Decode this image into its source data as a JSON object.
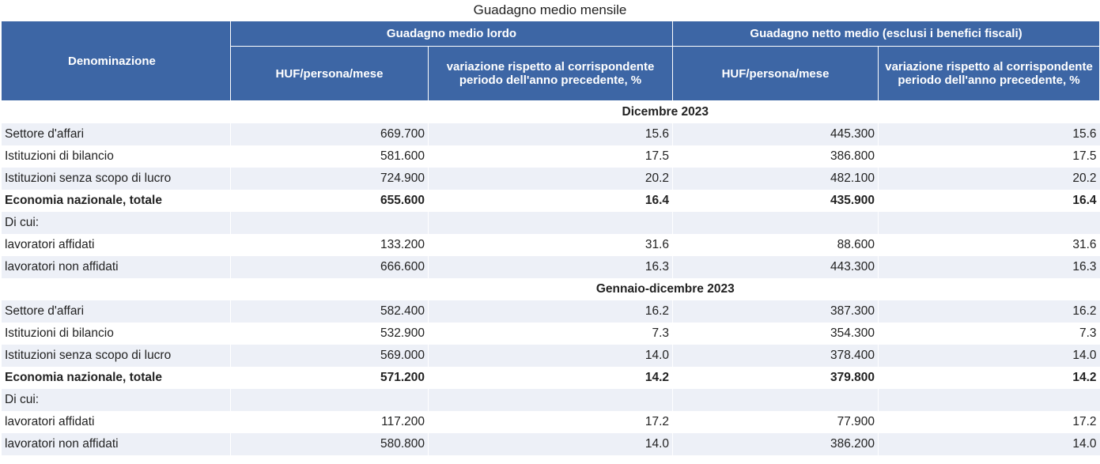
{
  "title": "Guadagno medio mensile",
  "header": {
    "denominazione": "Denominazione",
    "gross_group": "Guadagno medio lordo",
    "net_group": "Guadagno netto medio (esclusi i benefici fiscali)",
    "gross_huf": "HUF/persona/mese",
    "gross_change": "variazione rispetto al corrispondente periodo dell'anno precedente, %",
    "net_huf": "HUF/persona/mese",
    "net_change": "variazione rispetto al corrispondente periodo dell'anno precedente, %"
  },
  "sections": [
    {
      "label": "Dicembre 2023",
      "rows": [
        {
          "name": "Settore d'affari",
          "gross": "669.700",
          "gross_change": "15.6",
          "net": "445.300",
          "net_change": "15.6"
        },
        {
          "name": "Istituzioni di bilancio",
          "gross": "581.600",
          "gross_change": "17.5",
          "net": "386.800",
          "net_change": "17.5"
        },
        {
          "name": "Istituzioni senza scopo di lucro",
          "gross": "724.900",
          "gross_change": "20.2",
          "net": "482.100",
          "net_change": "20.2"
        },
        {
          "name": "Economia nazionale, totale",
          "gross": "655.600",
          "gross_change": "16.4",
          "net": "435.900",
          "net_change": "16.4"
        },
        {
          "name": "Di cui:",
          "gross": "",
          "gross_change": "",
          "net": "",
          "net_change": ""
        },
        {
          "name": "lavoratori affidati",
          "gross": "133.200",
          "gross_change": "31.6",
          "net": "88.600",
          "net_change": "31.6"
        },
        {
          "name": "lavoratori non affidati",
          "gross": "666.600",
          "gross_change": "16.3",
          "net": "443.300",
          "net_change": "16.3"
        }
      ]
    },
    {
      "label": "Gennaio-dicembre 2023",
      "rows": [
        {
          "name": "Settore d'affari",
          "gross": "582.400",
          "gross_change": "16.2",
          "net": "387.300",
          "net_change": "16.2"
        },
        {
          "name": "Istituzioni di bilancio",
          "gross": "532.900",
          "gross_change": "7.3",
          "net": "354.300",
          "net_change": "7.3"
        },
        {
          "name": "Istituzioni senza scopo di lucro",
          "gross": "569.000",
          "gross_change": "14.0",
          "net": "378.400",
          "net_change": "14.0"
        },
        {
          "name": "Economia nazionale, totale",
          "gross": "571.200",
          "gross_change": "14.2",
          "net": "379.800",
          "net_change": "14.2"
        },
        {
          "name": "Di cui:",
          "gross": "",
          "gross_change": "",
          "net": "",
          "net_change": ""
        },
        {
          "name": "lavoratori affidati",
          "gross": "117.200",
          "gross_change": "17.2",
          "net": "77.900",
          "net_change": "17.2"
        },
        {
          "name": "lavoratori non affidati",
          "gross": "580.800",
          "gross_change": "14.0",
          "net": "386.200",
          "net_change": "14.0"
        }
      ]
    }
  ]
}
